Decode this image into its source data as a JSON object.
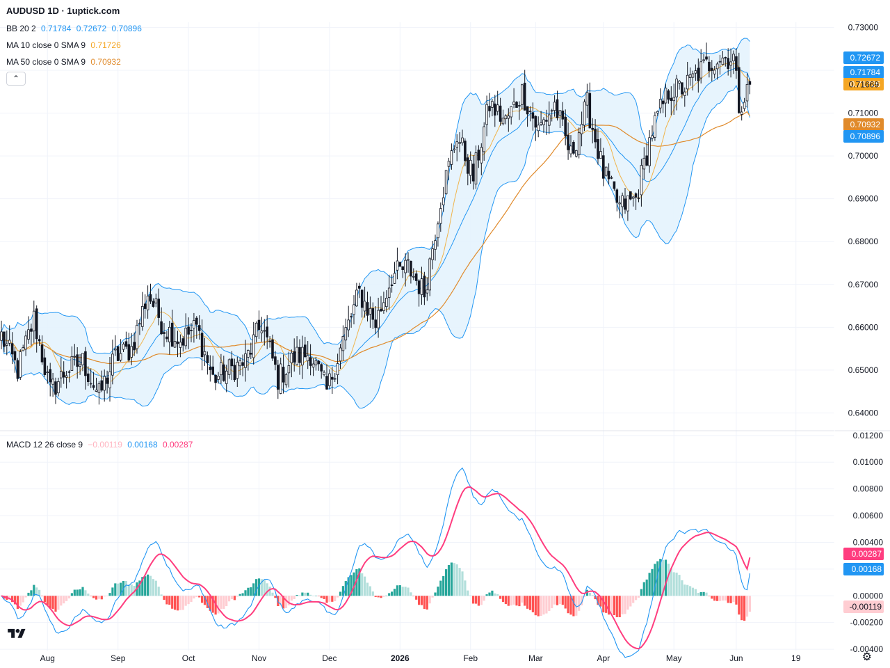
{
  "header": {
    "title": "AUDUSD 1D · 1uptick.com",
    "bb_label": "BB 20 2",
    "bb_values": [
      "0.71784",
      "0.72672",
      "0.70896"
    ],
    "ma10_label": "MA 10 close 0 SMA 9",
    "ma10_value": "0.71726",
    "ma50_label": "MA 50 close 0 SMA 9",
    "ma50_value": "0.70932",
    "macd_label": "MACD 12 26 close 9",
    "macd_values": [
      "−0.00119",
      "0.00168",
      "0.00287"
    ]
  },
  "colors": {
    "bb": "#2196f3",
    "bb_fill": "#e3f2fd",
    "ma10": "#f0b44c",
    "ma50": "#e08a2b",
    "macd": "#2196f3",
    "signal": "#ff3d7f",
    "hist_pos_strong": "#26a69a",
    "hist_pos_weak": "#b2dfdb",
    "hist_neg_strong": "#ff5252",
    "hist_neg_weak": "#ffcdd2",
    "candle": "#131722"
  },
  "chart_data": [
    {
      "type": "candlestick",
      "name": "AUDUSD 1D",
      "y_ticks": [
        "0.73000",
        "0.72000",
        "0.71000",
        "0.70000",
        "0.69000",
        "0.68000",
        "0.67000",
        "0.66000",
        "0.65000",
        "0.64000"
      ],
      "ylim": [
        0.6365,
        0.7312
      ],
      "x_labels": [
        "Aug",
        "Sep",
        "Oct",
        "Nov",
        "Dec",
        "2026",
        "Feb",
        "Mar",
        "Apr",
        "May",
        "Jun",
        "19"
      ],
      "last_price": "0.71669",
      "badges": [
        {
          "text": "0.72672",
          "value": 0.72672,
          "color": "#2196f3"
        },
        {
          "text": "0.71784",
          "value": 0.71784,
          "color": "#2196f3"
        },
        {
          "text": "0.71726",
          "value": 0.71726,
          "color": "#f5a623"
        },
        {
          "text": "0.70932",
          "value": 0.70932,
          "color": "#e08a2b"
        },
        {
          "text": "0.70896",
          "value": 0.70896,
          "color": "#2196f3"
        }
      ],
      "close_anchors": [
        [
          0,
          0.658
        ],
        [
          6,
          0.65
        ],
        [
          12,
          0.662
        ],
        [
          18,
          0.645
        ],
        [
          24,
          0.65
        ],
        [
          30,
          0.652
        ],
        [
          36,
          0.644
        ],
        [
          42,
          0.653
        ],
        [
          48,
          0.655
        ],
        [
          54,
          0.668
        ],
        [
          60,
          0.66
        ],
        [
          66,
          0.657
        ],
        [
          72,
          0.66
        ],
        [
          78,
          0.648
        ],
        [
          84,
          0.65
        ],
        [
          90,
          0.652
        ],
        [
          96,
          0.661
        ],
        [
          102,
          0.648
        ],
        [
          108,
          0.653
        ],
        [
          114,
          0.654
        ],
        [
          120,
          0.645
        ],
        [
          126,
          0.657
        ],
        [
          132,
          0.668
        ],
        [
          138,
          0.661
        ],
        [
          144,
          0.672
        ],
        [
          150,
          0.674
        ],
        [
          156,
          0.668
        ],
        [
          162,
          0.69
        ],
        [
          168,
          0.705
        ],
        [
          174,
          0.695
        ],
        [
          180,
          0.712
        ],
        [
          186,
          0.708
        ],
        [
          192,
          0.715
        ],
        [
          198,
          0.706
        ],
        [
          204,
          0.712
        ],
        [
          210,
          0.7
        ],
        [
          216,
          0.712
        ],
        [
          222,
          0.696
        ],
        [
          228,
          0.688
        ],
        [
          234,
          0.69
        ],
        [
          240,
          0.706
        ],
        [
          246,
          0.715
        ],
        [
          252,
          0.716
        ],
        [
          258,
          0.72
        ],
        [
          264,
          0.723
        ],
        [
          270,
          0.723
        ],
        [
          272,
          0.712
        ],
        [
          276,
          0.716
        ]
      ],
      "ma10_last": 0.71726,
      "ma50_last": 0.70932,
      "bb_last": [
        0.71784,
        0.72672,
        0.70896
      ]
    },
    {
      "type": "line",
      "name": "MACD 12 26 close 9",
      "y_ticks": [
        "0.01200",
        "0.01000",
        "0.00800",
        "0.00600",
        "0.00400",
        "0.00200",
        "0.00000",
        "-0.00200",
        "-0.00400"
      ],
      "ylim": [
        -0.0041,
        0.0122
      ],
      "badges": [
        {
          "text": "0.00287",
          "value": 0.00287,
          "color": "#ff3d7f"
        },
        {
          "text": "0.00168",
          "value": 0.00168,
          "color": "#2196f3"
        },
        {
          "text": "-0.00119",
          "value": -0.00119,
          "color": "#ffcdd2"
        }
      ],
      "macd_last": 0.00168,
      "signal_last": 0.00287,
      "hist_last": -0.00119
    }
  ]
}
